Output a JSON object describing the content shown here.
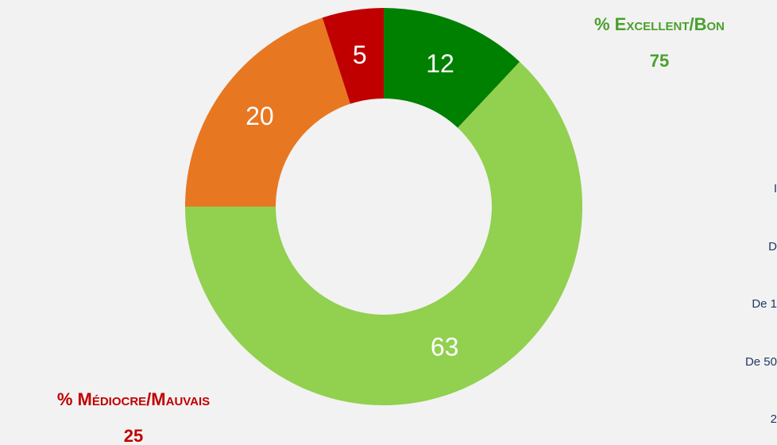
{
  "chart_data": {
    "type": "donut",
    "categories": [
      "Excellent",
      "Bon",
      "Médiocre",
      "Mauvais"
    ],
    "values": [
      12,
      63,
      20,
      5
    ],
    "colors": [
      "#008000",
      "#92d050",
      "#e87722",
      "#c00000"
    ],
    "annotations": [
      {
        "label": "% Excellent/Bon",
        "value": 75,
        "color": "#4aa02c"
      },
      {
        "label": "% Médiocre/Mauvais",
        "value": 25,
        "color": "#c00000"
      }
    ],
    "side_labels": [
      "I",
      "D",
      "De 1",
      "De 50",
      "2"
    ]
  }
}
